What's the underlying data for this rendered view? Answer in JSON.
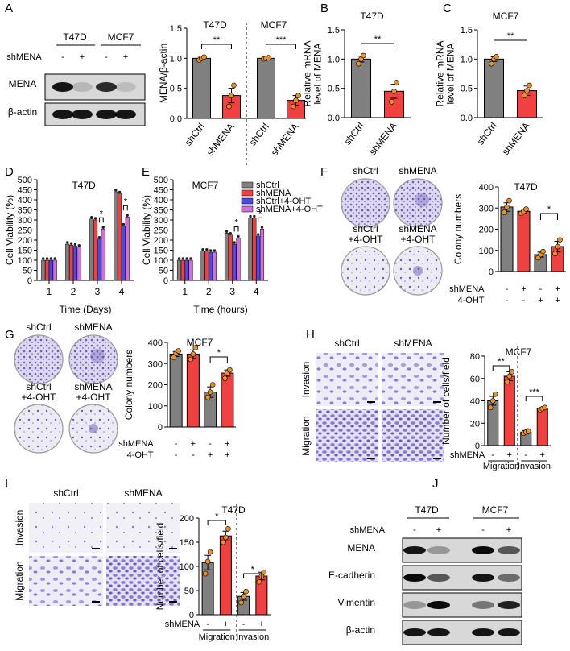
{
  "colors": {
    "gray": "#808080",
    "red": "#f04040",
    "blue": "#4a4ae8",
    "magenta": "#d070d8",
    "dot": "#e8902a",
    "blot_bg": "#d8d8d8",
    "plate": "#ececf2",
    "stain": "#6a5cc0"
  },
  "panels": {
    "A": {
      "label": "A",
      "lane_headers": [
        "T47D",
        "MCF7"
      ],
      "row_label": "shMENA",
      "lane_signs": [
        "-",
        "+",
        "-",
        "+"
      ],
      "bands": [
        "MENA",
        "β-actin"
      ]
    },
    "B": {
      "label": "B"
    },
    "C": {
      "label": "C"
    },
    "D": {
      "label": "D"
    },
    "E": {
      "label": "E"
    },
    "F": {
      "label": "F",
      "plates": [
        "shCtrl",
        "shMENA",
        "shCtrl\n+4-OHT",
        "shMENA\n+4-OHT"
      ]
    },
    "G": {
      "label": "G",
      "plates": [
        "shCtrl",
        "shMENA",
        "shCtrl\n+4-OHT",
        "shMENA\n+4-OHT"
      ]
    },
    "H": {
      "label": "H",
      "cols": [
        "shCtrl",
        "shMENA"
      ],
      "rows": [
        "Invasion",
        "Migration"
      ]
    },
    "I": {
      "label": "I",
      "cols": [
        "shCtrl",
        "shMENA"
      ],
      "rows": [
        "Invasion",
        "Migration"
      ]
    },
    "J": {
      "label": "J",
      "lane_headers": [
        "T47D",
        "MCF7"
      ],
      "row_label": "shMENA",
      "lane_signs": [
        "-",
        "+",
        "-",
        "+"
      ],
      "bands": [
        "MENA",
        "E-cadherin",
        "Vimentin",
        "β-actin"
      ]
    }
  },
  "chart_data": [
    {
      "id": "A",
      "type": "bar",
      "title": "T47D | MCF7",
      "ylabel": "MENA/β-actin",
      "ylim": [
        0,
        1.5
      ],
      "yticks": [
        "0.0",
        "0.5",
        "1.0",
        "1.5"
      ],
      "categories": [
        "shCtrl",
        "shMENA",
        "shCtrl",
        "shMENA"
      ],
      "values": [
        1.0,
        0.38,
        1.0,
        0.3
      ],
      "errors": [
        0.02,
        0.12,
        0.02,
        0.08
      ],
      "points": [
        [
          0.97,
          1.0,
          1.02
        ],
        [
          0.2,
          0.38,
          0.55
        ],
        [
          0.99,
          1.0,
          1.01
        ],
        [
          0.2,
          0.3,
          0.38
        ]
      ],
      "colors": [
        "gray",
        "red",
        "gray",
        "red"
      ],
      "groups": [
        "T47D",
        "MCF7"
      ],
      "sig": [
        "**",
        "***"
      ]
    },
    {
      "id": "B",
      "type": "bar",
      "title": "T47D",
      "ylabel": "Relative mRNA level of MENA",
      "ylim": [
        0,
        1.5
      ],
      "yticks": [
        "0.0",
        "0.5",
        "1.0",
        "1.5"
      ],
      "categories": [
        "shCtrl",
        "shMENA"
      ],
      "values": [
        1.0,
        0.45
      ],
      "errors": [
        0.05,
        0.12
      ],
      "points": [
        [
          0.92,
          1.0,
          1.06
        ],
        [
          0.27,
          0.45,
          0.6
        ]
      ],
      "colors": [
        "gray",
        "red"
      ],
      "sig": [
        "**"
      ]
    },
    {
      "id": "C",
      "type": "bar",
      "title": "MCF7",
      "ylabel": "Relative mRNA level of MENA",
      "ylim": [
        0,
        1.5
      ],
      "yticks": [
        "0.0",
        "0.5",
        "1.0",
        "1.5"
      ],
      "categories": [
        "shCtrl",
        "shMENA"
      ],
      "values": [
        1.0,
        0.46
      ],
      "errors": [
        0.04,
        0.08
      ],
      "points": [
        [
          0.92,
          1.0,
          1.04
        ],
        [
          0.38,
          0.46,
          0.55
        ]
      ],
      "colors": [
        "gray",
        "red"
      ],
      "sig": [
        "**"
      ]
    },
    {
      "id": "D",
      "type": "bar",
      "title": "T47D",
      "xlabel": "Time (Days)",
      "ylabel": "Cell Viability (%)",
      "ylim": [
        0,
        500
      ],
      "yticks": [
        "0",
        "50",
        "100",
        "150",
        "200",
        "250",
        "300",
        "350",
        "400",
        "450",
        "500"
      ],
      "categories": [
        "1",
        "2",
        "3",
        "4"
      ],
      "colors": [
        "gray",
        "red",
        "blue",
        "magenta"
      ],
      "series": [
        {
          "name": "shCtrl",
          "values": [
            100,
            180,
            305,
            440
          ]
        },
        {
          "name": "shMENA",
          "values": [
            100,
            175,
            300,
            430
          ]
        },
        {
          "name": "shCtrl+4-OHT",
          "values": [
            100,
            170,
            205,
            270
          ]
        },
        {
          "name": "shMENA+4-OHT",
          "values": [
            100,
            165,
            255,
            315
          ]
        }
      ],
      "sig": [
        {
          "cat": 2,
          "label": "*"
        },
        {
          "cat": 3,
          "label": "*"
        }
      ]
    },
    {
      "id": "E",
      "type": "bar",
      "title": "MCF7",
      "xlabel": "Time (hours)",
      "ylabel": "Cell Viability (%)",
      "ylim": [
        0,
        500
      ],
      "yticks": [
        "0",
        "50",
        "100",
        "150",
        "200",
        "250",
        "300",
        "350",
        "400",
        "450",
        "500"
      ],
      "categories": [
        "1",
        "2",
        "3",
        "4"
      ],
      "colors": [
        "gray",
        "red",
        "blue",
        "magenta"
      ],
      "series": [
        {
          "name": "shCtrl",
          "values": [
            100,
            145,
            235,
            310
          ]
        },
        {
          "name": "shMENA",
          "values": [
            100,
            145,
            225,
            310
          ]
        },
        {
          "name": "shCtrl+4-OHT",
          "values": [
            100,
            140,
            180,
            220
          ]
        },
        {
          "name": "shMENA+4-OHT",
          "values": [
            100,
            140,
            210,
            255
          ]
        }
      ],
      "legend": [
        "shCtrl",
        "shMENA",
        "shCtrl+4-OHT",
        "shMENA+4-OHT"
      ],
      "sig": [
        {
          "cat": 2,
          "label": "*"
        },
        {
          "cat": 3,
          "label": "*"
        }
      ]
    },
    {
      "id": "F",
      "type": "bar",
      "title": "T47D",
      "ylabel": "Colony numbers",
      "ylim": [
        0,
        400
      ],
      "yticks": [
        "0",
        "100",
        "200",
        "300",
        "400"
      ],
      "categories": [
        "",
        "",
        "",
        ""
      ],
      "values": [
        305,
        285,
        80,
        118
      ],
      "errors": [
        20,
        10,
        12,
        25
      ],
      "points": [
        [
          280,
          305,
          335
        ],
        [
          275,
          285,
          295
        ],
        [
          65,
          80,
          95
        ],
        [
          85,
          118,
          150
        ]
      ],
      "colors": [
        "gray",
        "red",
        "gray",
        "red"
      ],
      "cond_rows": [
        {
          "label": "shMENA",
          "signs": [
            "-",
            "+",
            "-",
            "+"
          ]
        },
        {
          "label": "4-OHT",
          "signs": [
            "-",
            "-",
            "+",
            "+"
          ]
        }
      ],
      "sig_pair": [
        2,
        3,
        "*"
      ]
    },
    {
      "id": "G",
      "type": "bar",
      "title": "MCF7",
      "ylabel": "Colony numbers",
      "ylim": [
        0,
        400
      ],
      "yticks": [
        "0",
        "100",
        "200",
        "300",
        "400"
      ],
      "categories": [
        "",
        "",
        "",
        ""
      ],
      "values": [
        345,
        345,
        165,
        255
      ],
      "errors": [
        12,
        20,
        25,
        15
      ],
      "points": [
        [
          330,
          348,
          360
        ],
        [
          320,
          345,
          375
        ],
        [
          140,
          165,
          200
        ],
        [
          230,
          255,
          270
        ]
      ],
      "colors": [
        "gray",
        "red",
        "gray",
        "red"
      ],
      "cond_rows": [
        {
          "label": "shMENA",
          "signs": [
            "-",
            "+",
            "-",
            "+"
          ]
        },
        {
          "label": "4-OHT",
          "signs": [
            "-",
            "-",
            "+",
            "+"
          ]
        }
      ],
      "sig_pair": [
        2,
        3,
        "*"
      ]
    },
    {
      "id": "H",
      "type": "bar",
      "title": "MCF7",
      "ylabel": "Number of cells/field",
      "ylim": [
        0,
        80
      ],
      "yticks": [
        "0",
        "20",
        "40",
        "60",
        "80"
      ],
      "categories": [
        "-",
        "+",
        "-",
        "+"
      ],
      "values": [
        40,
        62,
        12,
        33
      ],
      "errors": [
        4,
        4,
        1.5,
        1
      ],
      "points": [
        [
          34,
          40,
          46
        ],
        [
          57,
          62,
          66
        ],
        [
          11,
          12,
          13
        ],
        [
          32,
          33,
          34
        ]
      ],
      "colors": [
        "gray",
        "red",
        "gray",
        "red"
      ],
      "row_label": "shMENA",
      "groups": [
        "Migration",
        "Invasion"
      ],
      "sig": [
        "**",
        "***"
      ]
    },
    {
      "id": "I",
      "type": "bar",
      "title": "T47D",
      "ylabel": "Number of cells/field",
      "ylim": [
        0,
        200
      ],
      "yticks": [
        "0",
        "50",
        "100",
        "150",
        "200"
      ],
      "categories": [
        "-",
        "+",
        "-",
        "+"
      ],
      "values": [
        108,
        163,
        38,
        80
      ],
      "errors": [
        15,
        10,
        8,
        8
      ],
      "points": [
        [
          85,
          110,
          130
        ],
        [
          150,
          160,
          178
        ],
        [
          25,
          38,
          48
        ],
        [
          68,
          80,
          88
        ]
      ],
      "colors": [
        "gray",
        "red",
        "gray",
        "red"
      ],
      "row_label": "shMENA",
      "groups": [
        "Migration",
        "Invasion"
      ],
      "sig": [
        "*",
        "*"
      ]
    }
  ]
}
